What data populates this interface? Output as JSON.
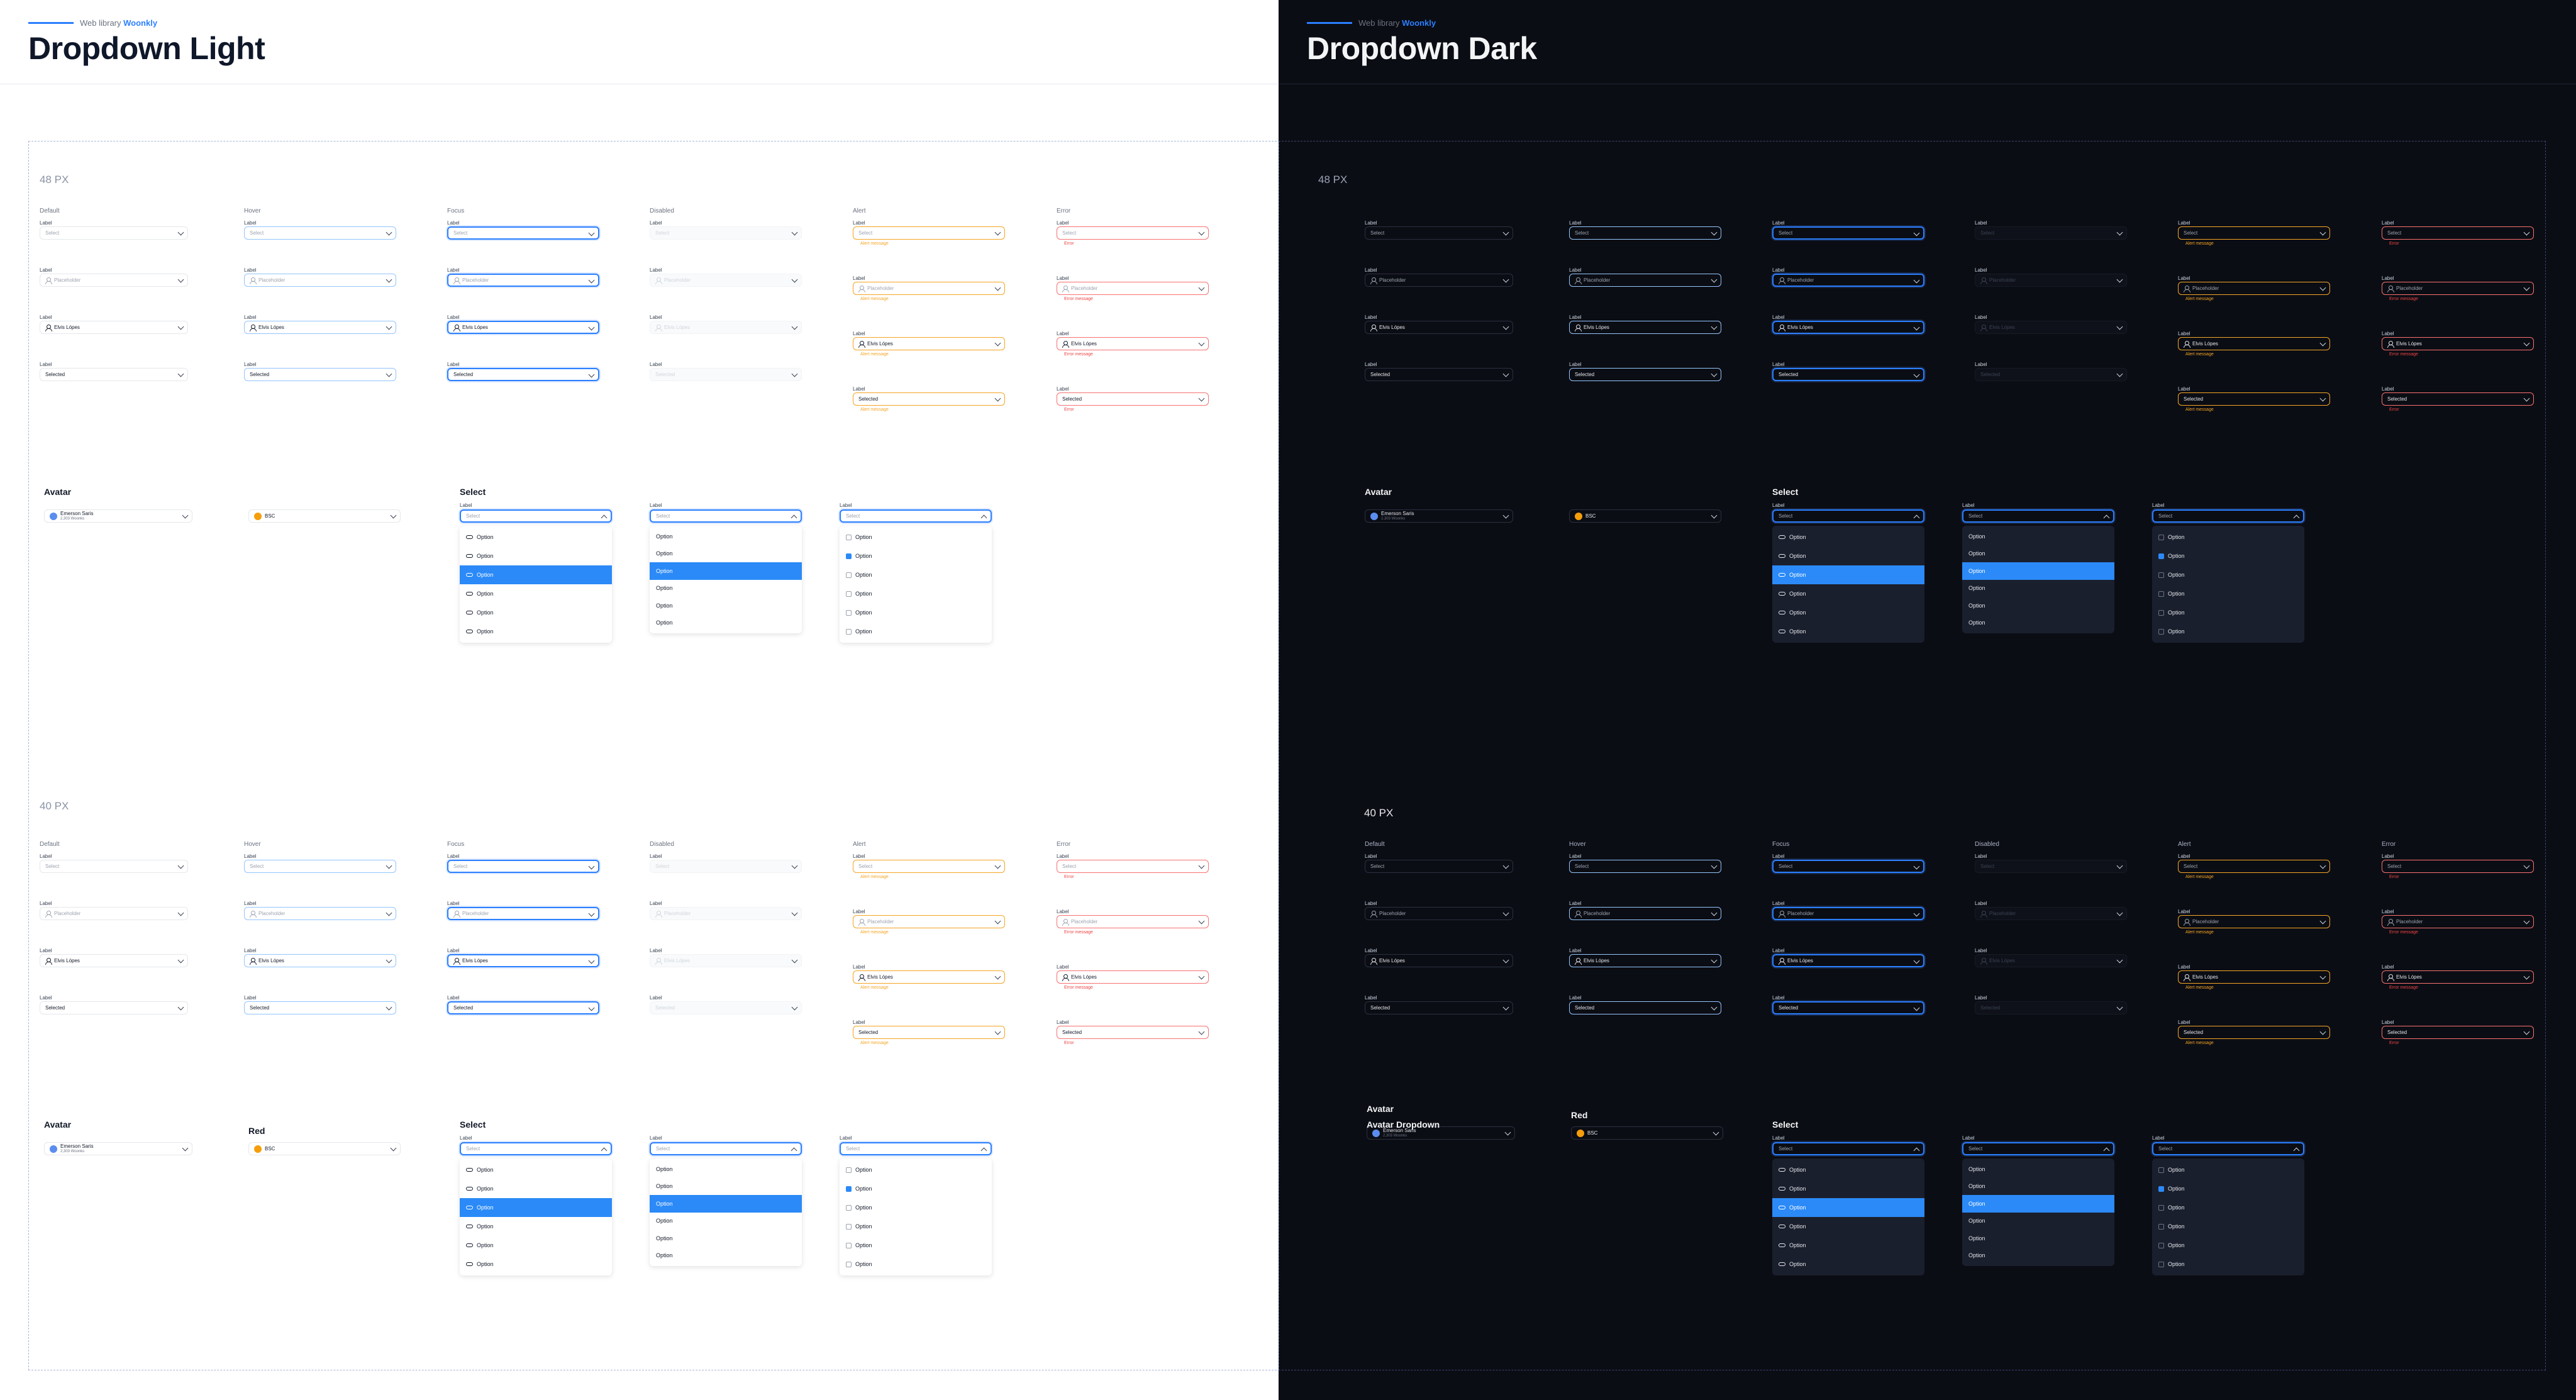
{
  "header": {
    "crumb_prefix": "Web library",
    "crumb_brand": "Woonkly"
  },
  "light": {
    "title": "Dropdown Light",
    "section_48": "48 PX",
    "section_40": "40 PX",
    "avatar_title": "Avatar",
    "select_title": "Select",
    "red_title": "Red"
  },
  "dark": {
    "title": "Dropdown Dark",
    "section_48": "48 PX",
    "section_40": "40 PX",
    "avatar_title": "Avatar",
    "avatar_dropdown_title": "Avatar Dropdown",
    "select_title": "Select",
    "red_title": "Red"
  },
  "states": [
    "Default",
    "Hover",
    "Focus",
    "Disabled",
    "Alert",
    "Error"
  ],
  "field": {
    "label": "Label",
    "select": "Select",
    "placeholder": "Placeholder",
    "name": "Elvis Lópes",
    "selected": "Selected",
    "alert_message": "Alert message",
    "error_message": "Error message",
    "error_short": "Error"
  },
  "avatar": {
    "name": "Emerson Saris",
    "meta": "2,303 Woonks",
    "token": "BSC"
  },
  "menu": {
    "option": "Option",
    "select": "Select"
  },
  "colors": {
    "accent": "#2b7fff",
    "alert": "#f5a524",
    "error": "#ef4444",
    "dark_bg": "#0b0d14"
  }
}
